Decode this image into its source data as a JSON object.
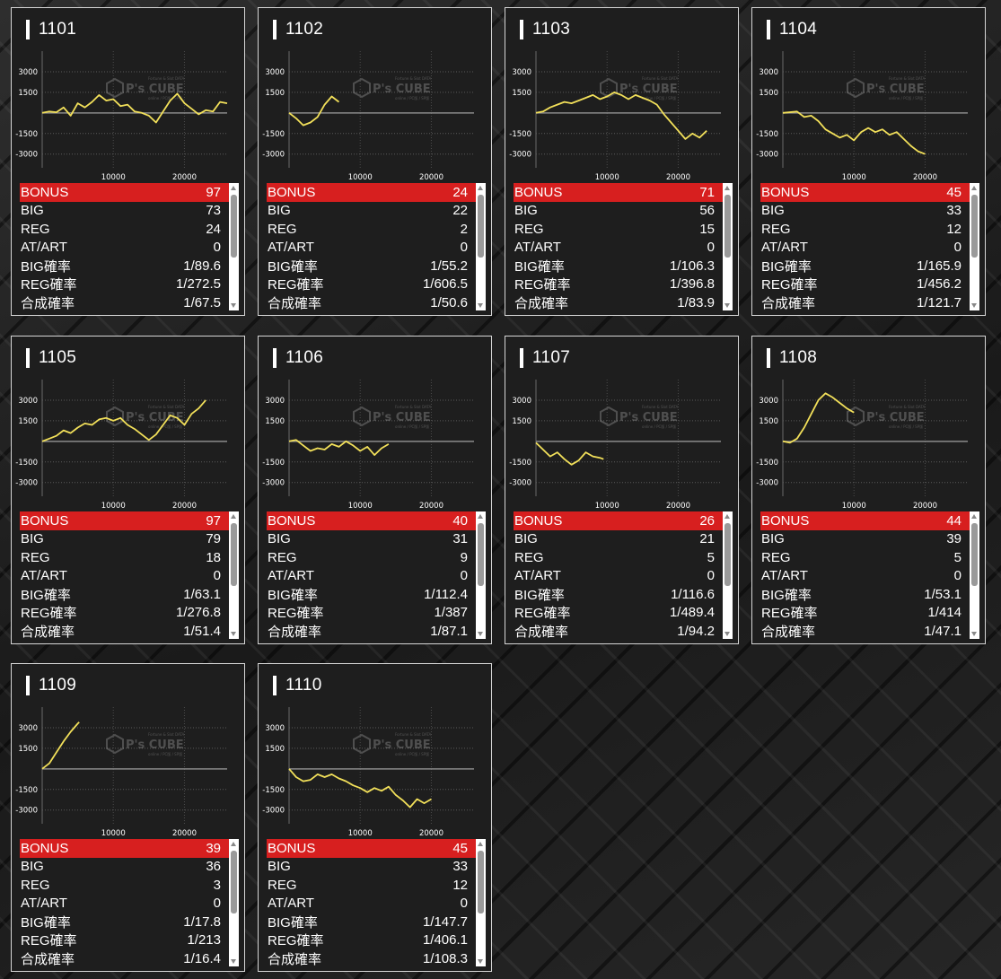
{
  "machines": [
    {
      "id": "1101",
      "bonus": "97",
      "big": "73",
      "reg": "24",
      "atart": "0",
      "big_rate": "1/89.6",
      "reg_rate": "1/272.5",
      "total_rate": "1/67.5"
    },
    {
      "id": "1102",
      "bonus": "24",
      "big": "22",
      "reg": "2",
      "atart": "0",
      "big_rate": "1/55.2",
      "reg_rate": "1/606.5",
      "total_rate": "1/50.6"
    },
    {
      "id": "1103",
      "bonus": "71",
      "big": "56",
      "reg": "15",
      "atart": "0",
      "big_rate": "1/106.3",
      "reg_rate": "1/396.8",
      "total_rate": "1/83.9"
    },
    {
      "id": "1104",
      "bonus": "45",
      "big": "33",
      "reg": "12",
      "atart": "0",
      "big_rate": "1/165.9",
      "reg_rate": "1/456.2",
      "total_rate": "1/121.7"
    },
    {
      "id": "1105",
      "bonus": "97",
      "big": "79",
      "reg": "18",
      "atart": "0",
      "big_rate": "1/63.1",
      "reg_rate": "1/276.8",
      "total_rate": "1/51.4"
    },
    {
      "id": "1106",
      "bonus": "40",
      "big": "31",
      "reg": "9",
      "atart": "0",
      "big_rate": "1/112.4",
      "reg_rate": "1/387",
      "total_rate": "1/87.1"
    },
    {
      "id": "1107",
      "bonus": "26",
      "big": "21",
      "reg": "5",
      "atart": "0",
      "big_rate": "1/116.6",
      "reg_rate": "1/489.4",
      "total_rate": "1/94.2"
    },
    {
      "id": "1108",
      "bonus": "44",
      "big": "39",
      "reg": "5",
      "atart": "0",
      "big_rate": "1/53.1",
      "reg_rate": "1/414",
      "total_rate": "1/47.1"
    },
    {
      "id": "1109",
      "bonus": "39",
      "big": "36",
      "reg": "3",
      "atart": "0",
      "big_rate": "1/17.8",
      "reg_rate": "1/213",
      "total_rate": "1/16.4"
    },
    {
      "id": "1110",
      "bonus": "45",
      "big": "33",
      "reg": "12",
      "atart": "0",
      "big_rate": "1/147.7",
      "reg_rate": "1/406.1",
      "total_rate": "1/108.3"
    }
  ],
  "labels": {
    "bonus": "BONUS",
    "big": "BIG",
    "reg": "REG",
    "atart": "AT/ART",
    "big_rate": "BIG確率",
    "reg_rate": "REG確率",
    "total_rate": "合成確率"
  },
  "watermark": {
    "brand": "P's CUBE",
    "top": "Fortune & Slot DATA",
    "bottom": "online / PC版 / SP版"
  },
  "colors": {
    "line": "#f2e05a",
    "bonus_row": "#d71f1f",
    "grid": "#6a6a6a"
  },
  "chart_data": [
    {
      "type": "line",
      "series": [
        {
          "values": [
            [
              0,
              0
            ],
            [
              1000,
              100
            ],
            [
              2000,
              50
            ],
            [
              3000,
              400
            ],
            [
              4000,
              -200
            ],
            [
              5000,
              700
            ],
            [
              6000,
              400
            ],
            [
              7000,
              800
            ],
            [
              8000,
              1300
            ],
            [
              9000,
              900
            ],
            [
              10000,
              1000
            ],
            [
              11000,
              500
            ],
            [
              12000,
              600
            ],
            [
              13000,
              100
            ],
            [
              14000,
              0
            ],
            [
              15000,
              -200
            ],
            [
              16000,
              -700
            ],
            [
              17000,
              100
            ],
            [
              18000,
              900
            ],
            [
              19000,
              1400
            ],
            [
              20000,
              700
            ],
            [
              21000,
              300
            ],
            [
              22000,
              -100
            ],
            [
              23000,
              200
            ],
            [
              24000,
              100
            ],
            [
              25000,
              800
            ],
            [
              26000,
              700
            ]
          ]
        }
      ],
      "xlim": [
        0,
        26000
      ],
      "ylim": [
        -4000,
        4500
      ],
      "yticks": [
        3000,
        1500,
        -1500,
        -3000
      ],
      "xticks": [
        10000,
        20000
      ]
    },
    {
      "type": "line",
      "series": [
        {
          "values": [
            [
              0,
              0
            ],
            [
              1000,
              -400
            ],
            [
              2000,
              -900
            ],
            [
              3000,
              -700
            ],
            [
              4000,
              -300
            ],
            [
              5000,
              600
            ],
            [
              6000,
              1200
            ],
            [
              7000,
              800
            ]
          ]
        }
      ],
      "xlim": [
        0,
        26000
      ],
      "ylim": [
        -4000,
        4500
      ],
      "yticks": [
        3000,
        1500,
        -1500,
        -3000
      ],
      "xticks": [
        10000,
        20000
      ]
    },
    {
      "type": "line",
      "series": [
        {
          "values": [
            [
              0,
              0
            ],
            [
              1000,
              100
            ],
            [
              2000,
              400
            ],
            [
              3000,
              600
            ],
            [
              4000,
              800
            ],
            [
              5000,
              700
            ],
            [
              6000,
              900
            ],
            [
              7000,
              1100
            ],
            [
              8000,
              1300
            ],
            [
              9000,
              1000
            ],
            [
              10000,
              1200
            ],
            [
              11000,
              1500
            ],
            [
              12000,
              1300
            ],
            [
              13000,
              1000
            ],
            [
              14000,
              1300
            ],
            [
              15000,
              1100
            ],
            [
              16000,
              900
            ],
            [
              17000,
              600
            ],
            [
              18000,
              -100
            ],
            [
              19000,
              -700
            ],
            [
              20000,
              -1300
            ],
            [
              21000,
              -1900
            ],
            [
              22000,
              -1500
            ],
            [
              23000,
              -1800
            ],
            [
              24000,
              -1300
            ]
          ]
        }
      ],
      "xlim": [
        0,
        26000
      ],
      "ylim": [
        -4000,
        4500
      ],
      "yticks": [
        3000,
        1500,
        -1500,
        -3000
      ],
      "xticks": [
        10000,
        20000
      ]
    },
    {
      "type": "line",
      "series": [
        {
          "values": [
            [
              0,
              0
            ],
            [
              2000,
              100
            ],
            [
              3000,
              -300
            ],
            [
              4000,
              -200
            ],
            [
              5000,
              -600
            ],
            [
              6000,
              -1200
            ],
            [
              7000,
              -1500
            ],
            [
              8000,
              -1800
            ],
            [
              9000,
              -1600
            ],
            [
              10000,
              -2000
            ],
            [
              11000,
              -1400
            ],
            [
              12000,
              -1100
            ],
            [
              13000,
              -1400
            ],
            [
              14000,
              -1200
            ],
            [
              15000,
              -1600
            ],
            [
              16000,
              -1400
            ],
            [
              17000,
              -1900
            ],
            [
              18000,
              -2400
            ],
            [
              19000,
              -2800
            ],
            [
              20000,
              -3000
            ]
          ]
        }
      ],
      "xlim": [
        0,
        26000
      ],
      "ylim": [
        -4000,
        4500
      ],
      "yticks": [
        3000,
        1500,
        -1500,
        -3000
      ],
      "xticks": [
        10000,
        20000
      ]
    },
    {
      "type": "line",
      "series": [
        {
          "values": [
            [
              0,
              0
            ],
            [
              1000,
              200
            ],
            [
              2000,
              400
            ],
            [
              3000,
              800
            ],
            [
              4000,
              600
            ],
            [
              5000,
              1000
            ],
            [
              6000,
              1300
            ],
            [
              7000,
              1200
            ],
            [
              8000,
              1600
            ],
            [
              9000,
              1700
            ],
            [
              10000,
              1500
            ],
            [
              11000,
              1700
            ],
            [
              12000,
              1200
            ],
            [
              13000,
              900
            ],
            [
              14000,
              500
            ],
            [
              15000,
              100
            ],
            [
              16000,
              500
            ],
            [
              17000,
              1200
            ],
            [
              18000,
              1900
            ],
            [
              19000,
              1700
            ],
            [
              20000,
              1200
            ],
            [
              21000,
              2000
            ],
            [
              22000,
              2400
            ],
            [
              23000,
              3000
            ]
          ]
        }
      ],
      "xlim": [
        0,
        26000
      ],
      "ylim": [
        -4000,
        4500
      ],
      "yticks": [
        3000,
        1500,
        -1500,
        -3000
      ],
      "xticks": [
        10000,
        20000
      ]
    },
    {
      "type": "line",
      "series": [
        {
          "values": [
            [
              0,
              0
            ],
            [
              1000,
              100
            ],
            [
              2000,
              -300
            ],
            [
              3000,
              -700
            ],
            [
              4000,
              -500
            ],
            [
              5000,
              -600
            ],
            [
              6000,
              -200
            ],
            [
              7000,
              -400
            ],
            [
              8000,
              0
            ],
            [
              9000,
              -300
            ],
            [
              10000,
              -700
            ],
            [
              11000,
              -400
            ],
            [
              12000,
              -1000
            ],
            [
              13000,
              -500
            ],
            [
              14000,
              -200
            ]
          ]
        }
      ],
      "xlim": [
        0,
        26000
      ],
      "ylim": [
        -4000,
        4500
      ],
      "yticks": [
        3000,
        1500,
        -1500,
        -3000
      ],
      "xticks": [
        10000,
        20000
      ]
    },
    {
      "type": "line",
      "series": [
        {
          "values": [
            [
              0,
              -100
            ],
            [
              1000,
              -600
            ],
            [
              2000,
              -1100
            ],
            [
              3000,
              -800
            ],
            [
              4000,
              -1300
            ],
            [
              5000,
              -1700
            ],
            [
              6000,
              -1400
            ],
            [
              7000,
              -800
            ],
            [
              8000,
              -1100
            ],
            [
              9000,
              -1200
            ],
            [
              9500,
              -1300
            ]
          ]
        }
      ],
      "xlim": [
        0,
        26000
      ],
      "ylim": [
        -4000,
        4500
      ],
      "yticks": [
        3000,
        1500,
        -1500,
        -3000
      ],
      "xticks": [
        10000,
        20000
      ]
    },
    {
      "type": "line",
      "series": [
        {
          "values": [
            [
              0,
              0
            ],
            [
              1000,
              -100
            ],
            [
              2000,
              200
            ],
            [
              3000,
              1000
            ],
            [
              4000,
              2000
            ],
            [
              5000,
              3000
            ],
            [
              6000,
              3500
            ],
            [
              7000,
              3200
            ],
            [
              8000,
              2800
            ],
            [
              9000,
              2400
            ],
            [
              10000,
              2100
            ]
          ]
        }
      ],
      "xlim": [
        0,
        26000
      ],
      "ylim": [
        -4000,
        4500
      ],
      "yticks": [
        3000,
        1500,
        -1500,
        -3000
      ],
      "xticks": [
        10000,
        20000
      ]
    },
    {
      "type": "line",
      "series": [
        {
          "values": [
            [
              0,
              0
            ],
            [
              1000,
              400
            ],
            [
              2000,
              1200
            ],
            [
              3000,
              2000
            ],
            [
              4000,
              2700
            ],
            [
              5000,
              3300
            ],
            [
              5200,
              3400
            ]
          ]
        }
      ],
      "xlim": [
        0,
        26000
      ],
      "ylim": [
        -4000,
        4500
      ],
      "yticks": [
        3000,
        1500,
        -1500,
        -3000
      ],
      "xticks": [
        10000,
        20000
      ]
    },
    {
      "type": "line",
      "series": [
        {
          "values": [
            [
              0,
              0
            ],
            [
              1000,
              -600
            ],
            [
              2000,
              -900
            ],
            [
              3000,
              -800
            ],
            [
              4000,
              -400
            ],
            [
              5000,
              -600
            ],
            [
              6000,
              -400
            ],
            [
              7000,
              -700
            ],
            [
              8000,
              -900
            ],
            [
              9000,
              -1200
            ],
            [
              10000,
              -1400
            ],
            [
              11000,
              -1700
            ],
            [
              12000,
              -1400
            ],
            [
              13000,
              -1600
            ],
            [
              14000,
              -1300
            ],
            [
              15000,
              -1900
            ],
            [
              16000,
              -2300
            ],
            [
              17000,
              -2800
            ],
            [
              18000,
              -2200
            ],
            [
              19000,
              -2500
            ],
            [
              20000,
              -2200
            ]
          ]
        }
      ],
      "xlim": [
        0,
        26000
      ],
      "ylim": [
        -4000,
        4500
      ],
      "yticks": [
        3000,
        1500,
        -1500,
        -3000
      ],
      "xticks": [
        10000,
        20000
      ]
    }
  ]
}
